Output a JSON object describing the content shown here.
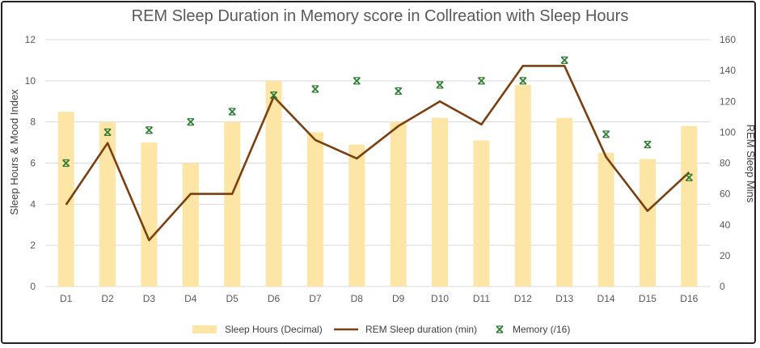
{
  "chart_data": {
    "type": "bar",
    "title": "REM Sleep Duration in Memory score in Collreation with Sleep Hours",
    "xlabel": "",
    "ylabel": "Sleep  Hours & Mood Index",
    "y2label": "REM Sleep Mins",
    "categories": [
      "D1",
      "D2",
      "D3",
      "D4",
      "D5",
      "D6",
      "D7",
      "D8",
      "D9",
      "D10",
      "D11",
      "D12",
      "D13",
      "D14",
      "D15",
      "D16"
    ],
    "ylim": [
      0,
      12
    ],
    "y2lim": [
      0,
      160
    ],
    "yticks": [
      0,
      2,
      4,
      6,
      8,
      10,
      12
    ],
    "y2ticks": [
      0,
      20,
      40,
      60,
      80,
      100,
      120,
      140,
      160
    ],
    "grid": true,
    "legend_position": "bottom",
    "series": [
      {
        "name": "Sleep Hours (Decimal)",
        "type": "bar",
        "axis": "left",
        "color": "#FCE5A5",
        "values": [
          8.5,
          8.0,
          7.0,
          6.0,
          8.0,
          10.0,
          7.5,
          6.9,
          8.0,
          8.2,
          7.1,
          9.8,
          8.2,
          6.5,
          6.2,
          7.8
        ]
      },
      {
        "name": "REM Sleep duration (min)",
        "type": "line",
        "axis": "right",
        "color": "#7B3F10",
        "values": [
          53,
          93,
          30,
          60,
          60,
          123,
          95,
          83,
          104,
          120,
          105,
          143,
          143,
          84,
          49,
          74
        ]
      },
      {
        "name": "Memory (/16)",
        "type": "scatter",
        "axis": "left",
        "color": "#2E7D32",
        "values": [
          6.0,
          7.5,
          7.6,
          8.0,
          8.5,
          9.3,
          9.6,
          10.0,
          9.5,
          9.8,
          10.0,
          10.0,
          11.0,
          7.4,
          6.9,
          5.3
        ]
      }
    ]
  }
}
